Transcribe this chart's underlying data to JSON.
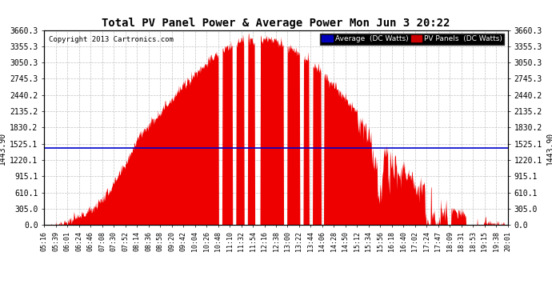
{
  "title": "Total PV Panel Power & Average Power Mon Jun 3 20:22",
  "copyright": "Copyright 2013 Cartronics.com",
  "y_ticks": [
    0.0,
    305.0,
    610.1,
    915.1,
    1220.1,
    1525.1,
    1830.2,
    2135.2,
    2440.2,
    2745.3,
    3050.3,
    3355.3,
    3660.3
  ],
  "y_left_label": "1443.90",
  "y_right_label": "1443.90",
  "average_value": 1443.9,
  "y_max": 3660.3,
  "y_min": 0.0,
  "legend_avg_color": "#0000bb",
  "legend_avg_label": "Average  (DC Watts)",
  "legend_pv_color": "#cc0000",
  "legend_pv_label": "PV Panels  (DC Watts)",
  "fill_color": "#ee0000",
  "avg_line_color": "#0000cc",
  "bg_color": "#ffffff",
  "grid_color": "#bbbbbb",
  "title_color": "#000000",
  "x_tick_labels": [
    "05:16",
    "05:39",
    "06:01",
    "06:24",
    "06:46",
    "07:08",
    "07:30",
    "07:52",
    "08:14",
    "08:36",
    "08:58",
    "09:20",
    "09:42",
    "10:04",
    "10:26",
    "10:48",
    "11:10",
    "11:32",
    "11:54",
    "12:16",
    "12:38",
    "13:00",
    "13:22",
    "13:44",
    "14:06",
    "14:28",
    "14:50",
    "15:12",
    "15:34",
    "15:56",
    "16:18",
    "16:40",
    "17:02",
    "17:24",
    "17:47",
    "18:09",
    "18:31",
    "18:53",
    "19:15",
    "19:38",
    "20:01"
  ]
}
